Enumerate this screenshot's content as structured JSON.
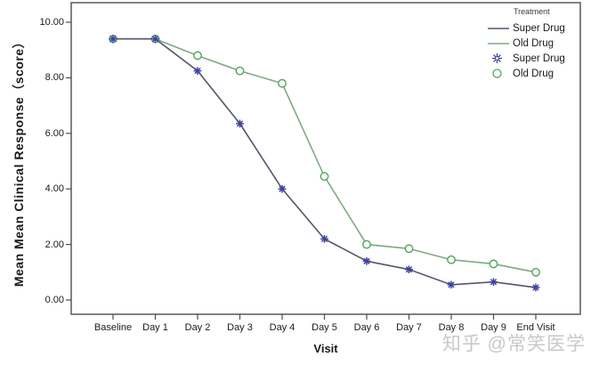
{
  "watermark": "知乎 @常笑医学",
  "legend": {
    "title": "Treatment",
    "entries": [
      {
        "label": "Super Drug",
        "sample": "line",
        "series": "super_drug"
      },
      {
        "label": "Old Drug",
        "sample": "line",
        "series": "old_drug"
      },
      {
        "label": "Super Drug",
        "sample": "star-marker",
        "series": "super_drug"
      },
      {
        "label": "Old Drug",
        "sample": "circle-marker",
        "series": "old_drug"
      }
    ]
  },
  "colors": {
    "super_drug_line": "#54566e",
    "super_drug_marker": "#3e42a0",
    "old_drug_line": "#7cab83",
    "old_drug_marker": "#4fa35b",
    "axis": "#4d4d4d",
    "text": "#1a1a1a",
    "watermark": "#c8c8c8"
  },
  "chart_data": {
    "type": "line",
    "title": "",
    "xlabel": "Visit",
    "ylabel": "Mean Mean Clinical Response（score）",
    "categories": [
      "Baseline",
      "Day 1",
      "Day 2",
      "Day 3",
      "Day 4",
      "Day 5",
      "Day 6",
      "Day 7",
      "Day 8",
      "Day 9",
      "End Visit"
    ],
    "y_ticks": [
      "0.00",
      "2.00",
      "4.00",
      "6.00",
      "8.00",
      "10.00"
    ],
    "y_tick_values": [
      0,
      2,
      4,
      6,
      8,
      10
    ],
    "ylim": [
      0,
      10
    ],
    "grid": false,
    "legend_position": "top-right",
    "series": [
      {
        "name": "Old Drug",
        "marker": "circle",
        "values": [
          9.4,
          9.4,
          8.8,
          8.25,
          7.8,
          4.45,
          2.0,
          1.85,
          1.45,
          1.3,
          1.0
        ]
      },
      {
        "name": "Super Drug",
        "marker": "star",
        "values": [
          9.4,
          9.4,
          8.25,
          6.35,
          4.0,
          2.2,
          1.4,
          1.1,
          0.55,
          0.65,
          0.45
        ]
      }
    ]
  }
}
